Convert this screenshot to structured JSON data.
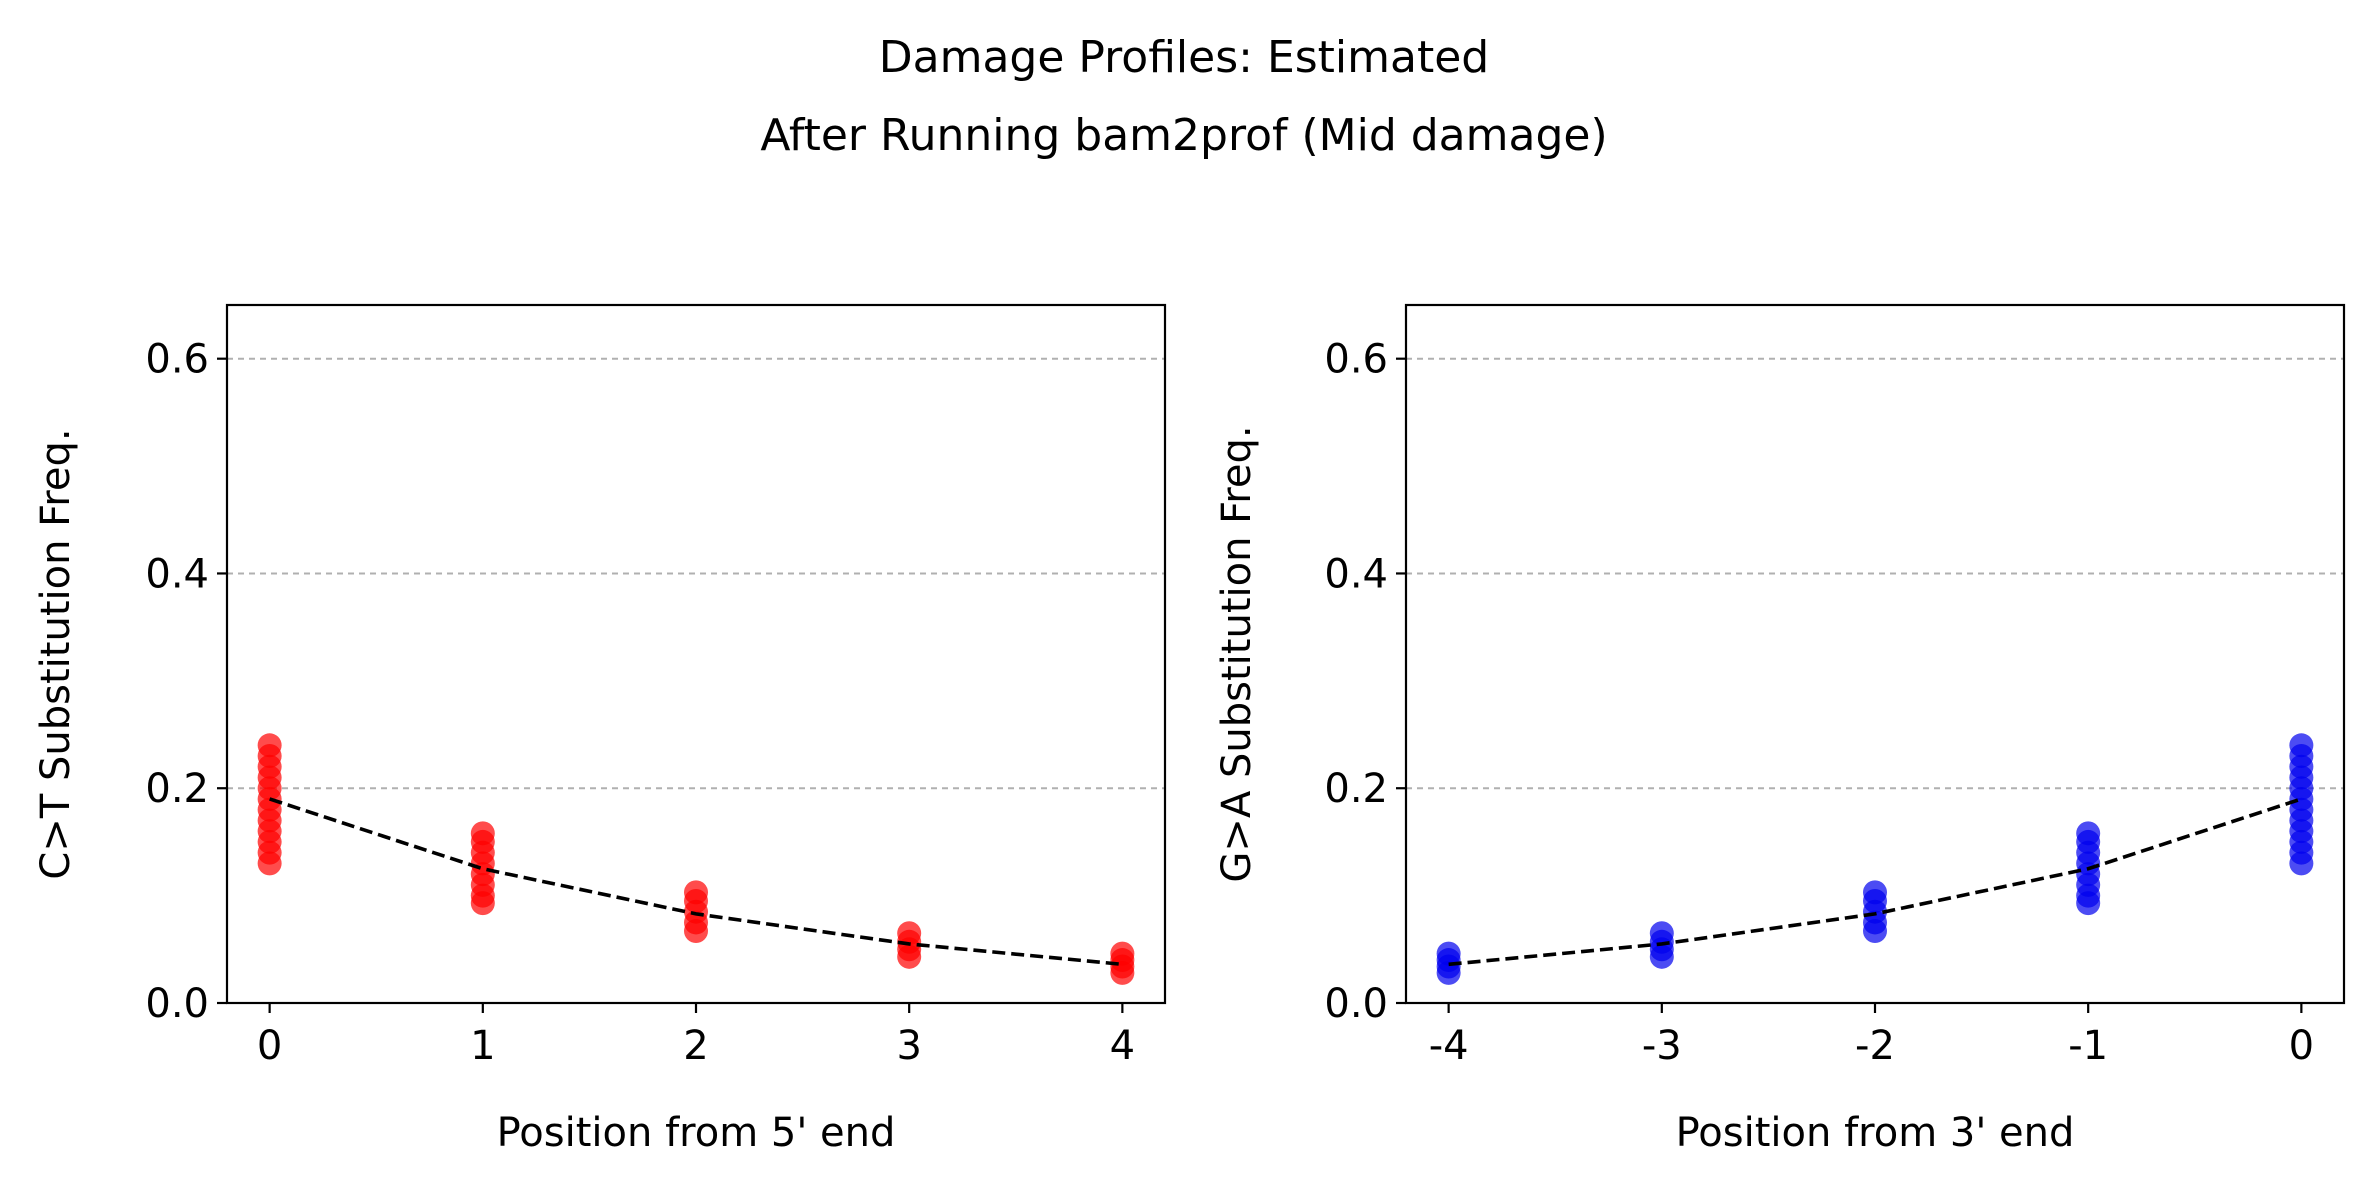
{
  "title_lines": [
    "Damage Profiles: Estimated",
    "After Running bam2prof (Mid damage)"
  ],
  "chart_data": [
    {
      "type": "scatter",
      "xlabel": "Position from 5' end",
      "ylabel": "C>T Substitution Freq.",
      "xlim": [
        -0.2,
        4.2
      ],
      "ylim": [
        0,
        0.65
      ],
      "x_ticks": [
        "0",
        "1",
        "2",
        "3",
        "4"
      ],
      "x_tick_values": [
        0,
        1,
        2,
        3,
        4
      ],
      "y_ticks": [
        "0.0",
        "0.2",
        "0.4",
        "0.6"
      ],
      "y_tick_values": [
        0,
        0.2,
        0.4,
        0.6
      ],
      "grid": "y",
      "point_color": "#ff0000",
      "fit_color": "#000000",
      "series": [
        {
          "x": 0,
          "y": [
            0.13,
            0.14,
            0.15,
            0.16,
            0.17,
            0.18,
            0.19,
            0.2,
            0.21,
            0.22,
            0.23,
            0.24
          ]
        },
        {
          "x": 1,
          "y": [
            0.093,
            0.1,
            0.11,
            0.12,
            0.13,
            0.14,
            0.15,
            0.158
          ]
        },
        {
          "x": 2,
          "y": [
            0.067,
            0.075,
            0.085,
            0.095,
            0.103
          ]
        },
        {
          "x": 3,
          "y": [
            0.043,
            0.05,
            0.057,
            0.065
          ]
        },
        {
          "x": 4,
          "y": [
            0.028,
            0.034,
            0.04,
            0.046
          ]
        }
      ],
      "fit": {
        "x": [
          0,
          1,
          2,
          3,
          4
        ],
        "y": [
          0.19,
          0.125,
          0.083,
          0.055,
          0.036
        ]
      }
    },
    {
      "type": "scatter",
      "xlabel": "Position from 3' end",
      "ylabel": "G>A Substitution Freq.",
      "xlim": [
        -4.2,
        0.2
      ],
      "ylim": [
        0,
        0.65
      ],
      "x_ticks": [
        "-4",
        "-3",
        "-2",
        "-1",
        "0"
      ],
      "x_tick_values": [
        -4,
        -3,
        -2,
        -1,
        0
      ],
      "y_ticks": [
        "0.0",
        "0.2",
        "0.4",
        "0.6"
      ],
      "y_tick_values": [
        0,
        0.2,
        0.4,
        0.6
      ],
      "grid": "y",
      "point_color": "#0000ee",
      "fit_color": "#000000",
      "series": [
        {
          "x": -4,
          "y": [
            0.028,
            0.034,
            0.04,
            0.046
          ]
        },
        {
          "x": -3,
          "y": [
            0.043,
            0.05,
            0.057,
            0.065
          ]
        },
        {
          "x": -2,
          "y": [
            0.067,
            0.075,
            0.085,
            0.095,
            0.103
          ]
        },
        {
          "x": -1,
          "y": [
            0.093,
            0.1,
            0.11,
            0.12,
            0.13,
            0.14,
            0.15,
            0.158
          ]
        },
        {
          "x": 0,
          "y": [
            0.13,
            0.14,
            0.15,
            0.16,
            0.17,
            0.18,
            0.19,
            0.2,
            0.21,
            0.22,
            0.23,
            0.24
          ]
        }
      ],
      "fit": {
        "x": [
          -4,
          -3,
          -2,
          -1,
          0
        ],
        "y": [
          0.036,
          0.055,
          0.083,
          0.125,
          0.19
        ]
      }
    }
  ]
}
